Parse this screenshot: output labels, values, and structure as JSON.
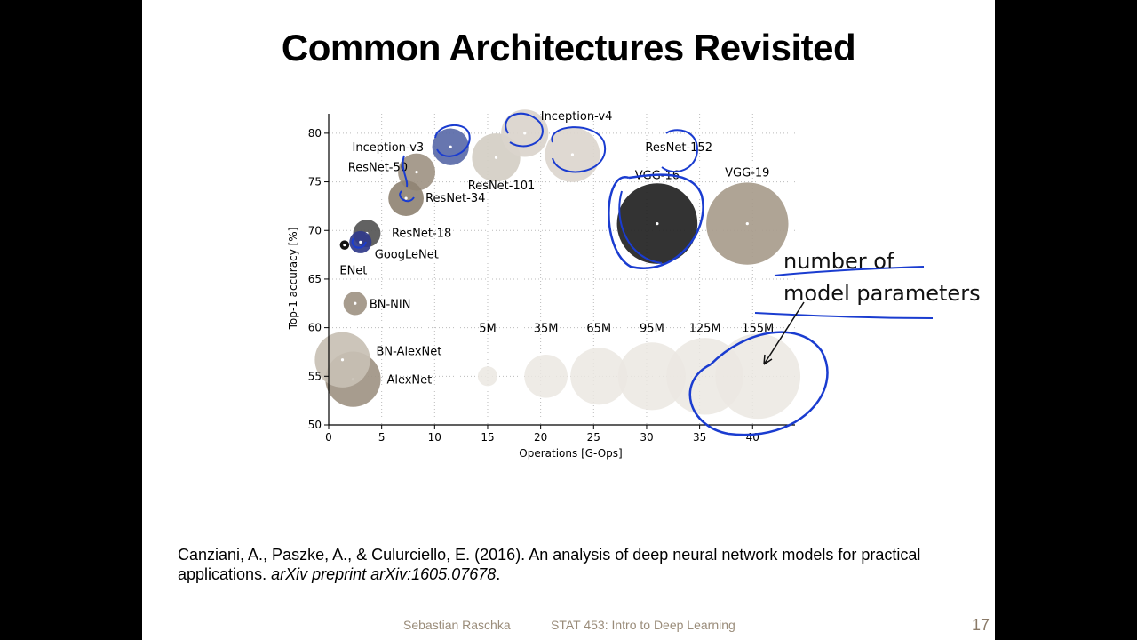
{
  "slide": {
    "title": "Common Architectures Revisited",
    "citation": {
      "text": "Canziani, A., Paszke, A., & Culurciello, E. (2016). An analysis of deep neural network models for practical applications.",
      "journal": "arXiv preprint arXiv:1605.07678",
      "end": "."
    },
    "footer": {
      "author": "Sebastian Raschka",
      "course": "STAT 453: Intro to Deep Learning",
      "page": "17"
    },
    "annotation": {
      "line1": "number of",
      "line2": "model parameters"
    }
  },
  "chart_data": {
    "type": "scatter",
    "xlabel": "Operations [G-Ops]",
    "ylabel": "Top-1 accuracy [%]",
    "xlim": [
      0,
      44
    ],
    "ylim": [
      50,
      82
    ],
    "xticks": [
      0,
      5,
      10,
      15,
      20,
      25,
      30,
      35,
      40
    ],
    "yticks": [
      50,
      55,
      60,
      65,
      70,
      75,
      80
    ],
    "grid": true,
    "points": [
      {
        "name": "AlexNet",
        "x": 2.3,
        "y": 54.7,
        "params_M": 61,
        "color": "#a09484"
      },
      {
        "name": "BN-AlexNet",
        "x": 1.3,
        "y": 56.7,
        "params_M": 61,
        "color": "#c8c0b4"
      },
      {
        "name": "BN-NIN",
        "x": 2.5,
        "y": 62.5,
        "params_M": 8,
        "color": "#a09484"
      },
      {
        "name": "ENet",
        "x": 1.5,
        "y": 68.5,
        "params_M": 0.4,
        "color": "#000000"
      },
      {
        "name": "GoogLeNet",
        "x": 3.0,
        "y": 68.8,
        "params_M": 7,
        "color": "#303a8a"
      },
      {
        "name": "ResNet-18",
        "x": 3.6,
        "y": 69.7,
        "params_M": 12,
        "color": "#555555"
      },
      {
        "name": "ResNet-34",
        "x": 7.3,
        "y": 73.3,
        "params_M": 22,
        "color": "#908474"
      },
      {
        "name": "ResNet-50",
        "x": 8.3,
        "y": 76.0,
        "params_M": 25,
        "color": "#a09484"
      },
      {
        "name": "Inception-v3",
        "x": 11.5,
        "y": 78.6,
        "params_M": 24,
        "color": "#5a6aa8"
      },
      {
        "name": "ResNet-101",
        "x": 15.8,
        "y": 77.5,
        "params_M": 45,
        "color": "#d4cec4"
      },
      {
        "name": "Inception-v4",
        "x": 18.5,
        "y": 80.0,
        "params_M": 43,
        "color": "#dad4cc"
      },
      {
        "name": "ResNet-152",
        "x": 23.0,
        "y": 77.8,
        "params_M": 60,
        "color": "#dcd6ce"
      },
      {
        "name": "VGG-16",
        "x": 31.0,
        "y": 70.7,
        "params_M": 138,
        "color": "#222222"
      },
      {
        "name": "VGG-19",
        "x": 39.5,
        "y": 70.7,
        "params_M": 144,
        "color": "#a89c8c"
      }
    ],
    "size_legend": [
      {
        "label": "5M",
        "x": 15,
        "params_M": 5
      },
      {
        "label": "35M",
        "x": 20.5,
        "params_M": 35
      },
      {
        "label": "65M",
        "x": 25.5,
        "params_M": 65
      },
      {
        "label": "95M",
        "x": 30.5,
        "params_M": 95
      },
      {
        "label": "125M",
        "x": 35.5,
        "params_M": 125
      },
      {
        "label": "155M",
        "x": 40.5,
        "params_M": 155
      }
    ],
    "size_legend_y": 55
  }
}
